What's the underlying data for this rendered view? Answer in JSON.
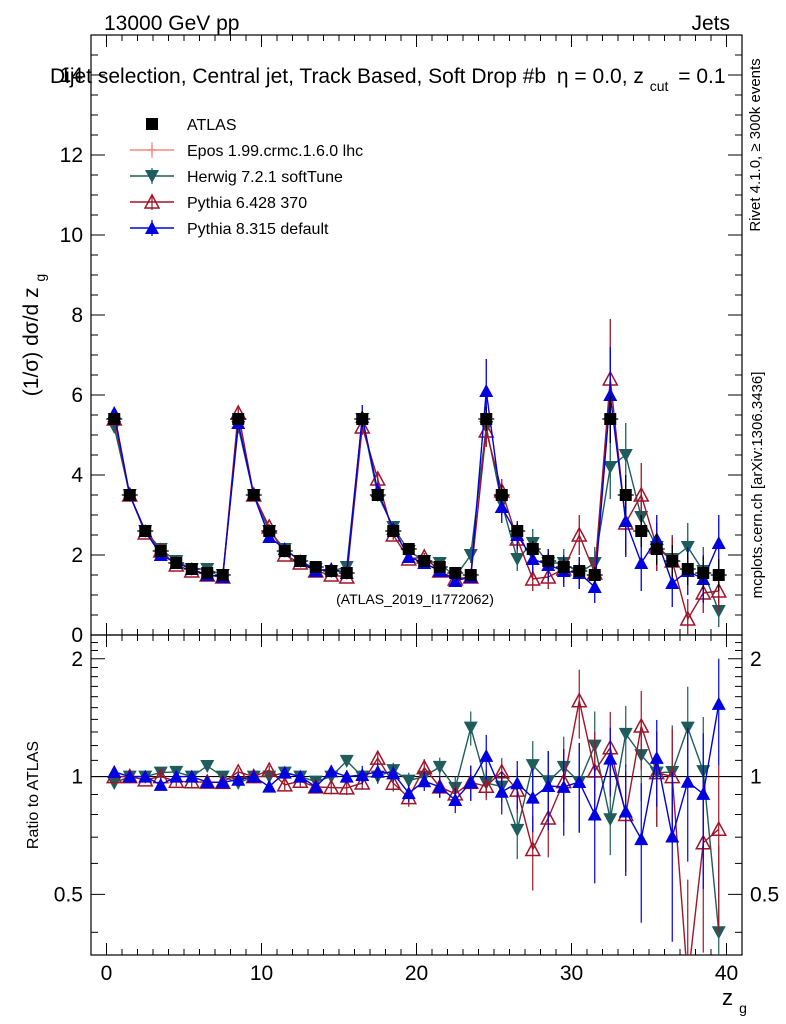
{
  "chart_data": {
    "type": "scatter",
    "header": {
      "energy": "13000 GeV pp",
      "process": "Jets"
    },
    "title_text": "Dijet selection, Central jet, Track Based, Soft Drop #b",
    "title_suffix": "η = 0.0, z",
    "title_sub": "cut",
    "title_tail": "= 0.1",
    "ylabel": "(1/σ) dσ/d z",
    "ylabel_sub": "g",
    "xlabel": "z",
    "xlabel_sub": "g",
    "ratio_ylabel": "Ratio to ATLAS",
    "watermark": "(ATLAS_2019_I1772062)",
    "side_label_top": "Rivet 4.1.0, ≥ 300k events",
    "side_label_bottom": "mcplots.cern.ch [arXiv:1306.3436]",
    "xlim": [
      -1,
      41
    ],
    "ylim": [
      0,
      15
    ],
    "ratio_ylim": [
      0.35,
      2.3
    ],
    "x_ticks": [
      0,
      10,
      20,
      30,
      40
    ],
    "y_ticks": [
      0,
      2,
      4,
      6,
      8,
      10,
      12,
      14
    ],
    "ratio_ticks": [
      0.5,
      1,
      2
    ],
    "x": [
      0.5,
      1.5,
      2.5,
      3.5,
      4.5,
      5.5,
      6.5,
      7.5,
      8.5,
      9.5,
      10.5,
      11.5,
      12.5,
      13.5,
      14.5,
      15.5,
      16.5,
      17.5,
      18.5,
      19.5,
      20.5,
      21.5,
      22.5,
      23.5,
      24.5,
      25.5,
      26.5,
      27.5,
      28.5,
      29.5,
      30.5,
      31.5,
      32.5,
      33.5,
      34.5,
      35.5,
      36.5,
      37.5,
      38.5,
      39.5
    ],
    "series": [
      {
        "name": "ATLAS",
        "color": "#000000",
        "marker": "square",
        "values": [
          5.4,
          3.5,
          2.6,
          2.1,
          1.8,
          1.65,
          1.55,
          1.5,
          5.4,
          3.5,
          2.6,
          2.1,
          1.85,
          1.7,
          1.6,
          1.55,
          5.4,
          3.5,
          2.6,
          2.15,
          1.85,
          1.7,
          1.55,
          1.5,
          5.4,
          3.5,
          2.6,
          2.15,
          1.85,
          1.7,
          1.6,
          1.5,
          5.4,
          3.5,
          2.6,
          2.15,
          1.85,
          1.65,
          1.55,
          1.5
        ],
        "errors": [
          0.1,
          0.08,
          0.06,
          0.05,
          0.05,
          0.05,
          0.05,
          0.05,
          0.15,
          0.1,
          0.08,
          0.07,
          0.06,
          0.06,
          0.06,
          0.06,
          0.2,
          0.15,
          0.12,
          0.1,
          0.1,
          0.1,
          0.1,
          0.1,
          0.3,
          0.25,
          0.2,
          0.2,
          0.2,
          0.2,
          0.2,
          0.2,
          0.6,
          0.5,
          0.4,
          0.4,
          0.4,
          0.4,
          0.4,
          0.4
        ]
      },
      {
        "name": "Epos 1.99.crmc.1.6.0 lhc",
        "color": "#f28a8a",
        "marker": "cross",
        "values": [],
        "errors": []
      },
      {
        "name": "Herwig 7.2.1 softTune",
        "color": "#1f5c5c",
        "marker": "triangle-down",
        "values": [
          5.2,
          3.5,
          2.6,
          2.15,
          1.85,
          1.65,
          1.65,
          1.5,
          5.2,
          3.5,
          2.6,
          2.15,
          1.85,
          1.65,
          1.6,
          1.7,
          5.4,
          3.5,
          2.7,
          2.1,
          1.85,
          1.8,
          1.45,
          2.0,
          5.2,
          3.3,
          1.9,
          2.3,
          1.8,
          1.8,
          1.55,
          1.8,
          4.2,
          4.5,
          2.95,
          2.2,
          1.9,
          2.2,
          1.6,
          0.6
        ],
        "errors": [
          0.08,
          0.06,
          0.05,
          0.05,
          0.05,
          0.05,
          0.05,
          0.05,
          0.12,
          0.08,
          0.07,
          0.06,
          0.06,
          0.06,
          0.06,
          0.06,
          0.2,
          0.15,
          0.12,
          0.1,
          0.1,
          0.1,
          0.1,
          0.2,
          0.4,
          0.3,
          0.3,
          0.35,
          0.35,
          0.35,
          0.4,
          0.4,
          0.8,
          0.8,
          0.7,
          0.6,
          0.6,
          0.6,
          0.6,
          0.4
        ]
      },
      {
        "name": "Pythia 6.428 370",
        "color": "#a0142a",
        "marker": "triangle-open",
        "values": [
          5.4,
          3.5,
          2.55,
          2.1,
          1.75,
          1.6,
          1.5,
          1.45,
          5.55,
          3.5,
          2.7,
          2.0,
          1.8,
          1.6,
          1.5,
          1.45,
          5.2,
          3.9,
          2.5,
          1.9,
          1.95,
          1.6,
          1.4,
          1.45,
          5.1,
          3.6,
          2.4,
          1.4,
          1.45,
          1.65,
          2.5,
          1.55,
          6.4,
          2.8,
          3.5,
          2.2,
          1.85,
          0.4,
          1.05,
          1.1
        ],
        "errors": [
          0.08,
          0.06,
          0.05,
          0.05,
          0.05,
          0.05,
          0.05,
          0.05,
          0.12,
          0.08,
          0.07,
          0.06,
          0.06,
          0.06,
          0.06,
          0.06,
          0.2,
          0.15,
          0.12,
          0.1,
          0.1,
          0.1,
          0.1,
          0.15,
          0.4,
          0.3,
          0.3,
          0.3,
          0.3,
          0.35,
          0.5,
          0.4,
          1.5,
          0.8,
          0.8,
          0.6,
          0.6,
          0.5,
          0.5,
          0.5
        ]
      },
      {
        "name": "Pythia 8.315 default",
        "color": "#0000e0",
        "marker": "triangle-up",
        "values": [
          5.55,
          3.5,
          2.6,
          2.0,
          1.8,
          1.65,
          1.5,
          1.45,
          5.3,
          3.5,
          2.45,
          2.15,
          1.85,
          1.6,
          1.65,
          1.55,
          5.45,
          3.6,
          2.65,
          1.95,
          1.8,
          1.6,
          1.35,
          1.45,
          6.1,
          3.2,
          2.5,
          1.9,
          1.75,
          1.6,
          1.55,
          1.2,
          6.0,
          2.85,
          1.8,
          2.4,
          1.3,
          1.6,
          1.4,
          2.3
        ],
        "errors": [
          0.08,
          0.06,
          0.05,
          0.05,
          0.05,
          0.05,
          0.05,
          0.05,
          0.12,
          0.08,
          0.07,
          0.06,
          0.06,
          0.06,
          0.06,
          0.06,
          0.3,
          0.2,
          0.12,
          0.1,
          0.1,
          0.1,
          0.1,
          0.15,
          0.8,
          0.4,
          0.35,
          0.35,
          0.4,
          0.4,
          0.4,
          0.4,
          1.2,
          0.9,
          0.7,
          0.6,
          0.6,
          0.6,
          0.6,
          0.7
        ]
      }
    ],
    "legend_position": "top-left"
  }
}
